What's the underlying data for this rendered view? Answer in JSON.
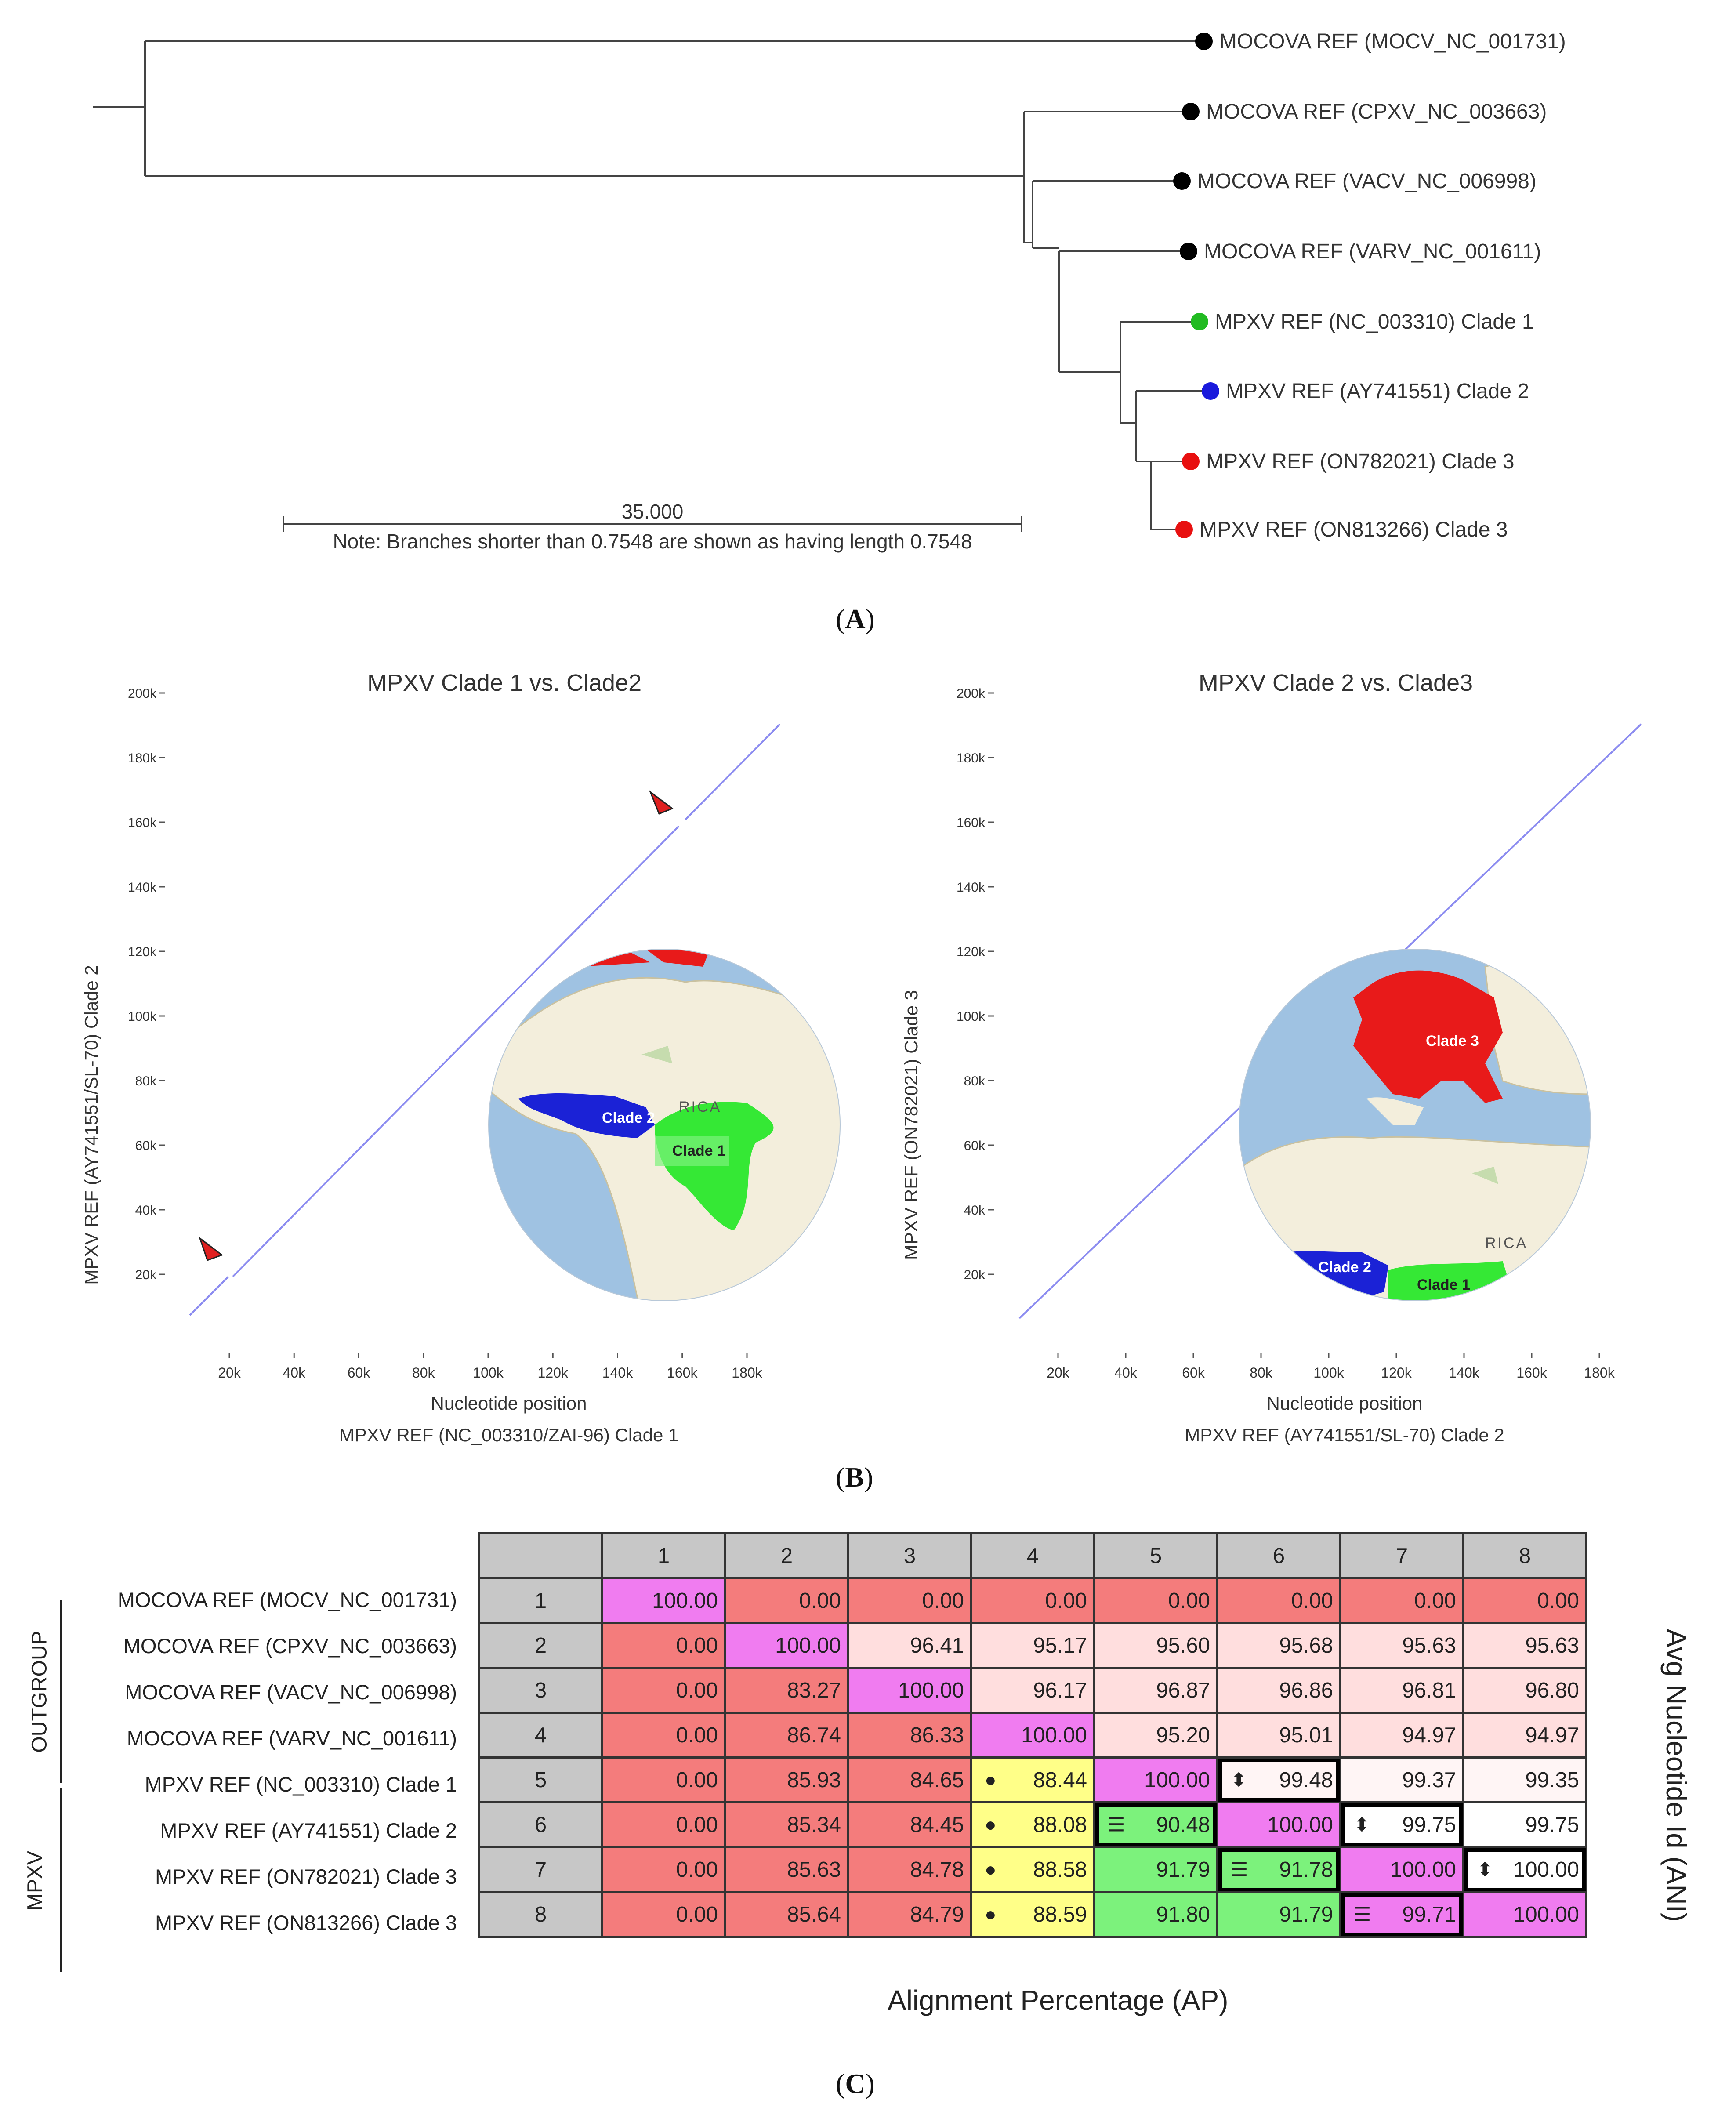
{
  "tree": {
    "leaves": [
      {
        "label": "MOCOVA REF (MOCV_NC_001731)",
        "color": "#000000"
      },
      {
        "label": "MOCOVA REF (CPXV_NC_003663)",
        "color": "#000000"
      },
      {
        "label": "MOCOVA REF (VACV_NC_006998)",
        "color": "#000000"
      },
      {
        "label": "MOCOVA REF (VARV_NC_001611)",
        "color": "#000000"
      },
      {
        "label": "MPXV REF (NC_003310) Clade 1",
        "color": "#22bb22"
      },
      {
        "label": "MPXV REF (AY741551) Clade 2",
        "color": "#1a1adc"
      },
      {
        "label": "MPXV REF (ON782021) Clade 3",
        "color": "#e81010"
      },
      {
        "label": "MPXV REF (ON813266) Clade 3",
        "color": "#e81010"
      }
    ],
    "scale_value": "35.000",
    "note": "Note: Branches shorter than 0.7548 are shown as having length 0.7548"
  },
  "labels": {
    "a": "A",
    "b": "B",
    "c": "C"
  },
  "dotplots": [
    {
      "title": "MPXV Clade 1 vs. Clade2",
      "ylabel": "MPXV REF (AY741551/SL-70) Clade 2",
      "xlabel": "Nucleotide position",
      "xlabel2": "MPXV REF (NC_003310/ZAI-96) Clade 1",
      "xticks": [
        "20k",
        "40k",
        "60k",
        "80k",
        "100k",
        "120k",
        "140k",
        "160k",
        "180k"
      ],
      "yticks": [
        "200k",
        "180k",
        "160k",
        "140k",
        "120k",
        "100k",
        "80k",
        "60k",
        "40k",
        "20k"
      ],
      "map_labels": [
        "Clade 2",
        "Clade 1",
        "RICA"
      ]
    },
    {
      "title": "MPXV Clade 2 vs. Clade3",
      "ylabel": "MPXV REF (ON782021) Clade 3",
      "xlabel": "Nucleotide position",
      "xlabel2": "MPXV REF (AY741551/SL-70) Clade 2",
      "xticks": [
        "20k",
        "40k",
        "60k",
        "80k",
        "100k",
        "120k",
        "140k",
        "160k",
        "180k"
      ],
      "yticks": [
        "200k",
        "180k",
        "160k",
        "140k",
        "120k",
        "100k",
        "80k",
        "60k",
        "40k",
        "20k"
      ],
      "map_labels": [
        "Clade 3",
        "Clade 2",
        "Clade 1",
        "RICA"
      ]
    }
  ],
  "chart_data": {
    "type": "heatmap",
    "title": "",
    "row_labels": [
      "MOCOVA REF (MOCV_NC_001731)",
      "MOCOVA REF (CPXV_NC_003663)",
      "MOCOVA REF (VACV_NC_006998)",
      "MOCOVA REF (VARV_NC_001611)",
      "MPXV REF (NC_003310) Clade 1",
      "MPXV REF (AY741551) Clade 2",
      "MPXV REF (ON782021) Clade 3",
      "MPXV REF (ON813266) Clade 3"
    ],
    "row_index": [
      "1",
      "2",
      "3",
      "4",
      "5",
      "6",
      "7",
      "8"
    ],
    "col_labels": [
      "1",
      "2",
      "3",
      "4",
      "5",
      "6",
      "7",
      "8"
    ],
    "values": [
      [
        "100.00",
        "0.00",
        "0.00",
        "0.00",
        "0.00",
        "0.00",
        "0.00",
        "0.00"
      ],
      [
        "0.00",
        "100.00",
        "96.41",
        "95.17",
        "95.60",
        "95.68",
        "95.63",
        "95.63"
      ],
      [
        "0.00",
        "83.27",
        "100.00",
        "96.17",
        "96.87",
        "96.86",
        "96.81",
        "96.80"
      ],
      [
        "0.00",
        "86.74",
        "86.33",
        "100.00",
        "95.20",
        "95.01",
        "94.97",
        "94.97"
      ],
      [
        "0.00",
        "85.93",
        "84.65",
        "88.44",
        "100.00",
        "99.48",
        "99.37",
        "99.35"
      ],
      [
        "0.00",
        "85.34",
        "84.45",
        "88.08",
        "90.48",
        "100.00",
        "99.75",
        "99.75"
      ],
      [
        "0.00",
        "85.63",
        "84.78",
        "88.58",
        "91.79",
        "91.78",
        "100.00",
        "100.00"
      ],
      [
        "0.00",
        "85.64",
        "84.79",
        "88.59",
        "91.80",
        "91.79",
        "99.71",
        "100.00"
      ]
    ],
    "colors": {
      "red": "#f47c7c",
      "pink": "#ffdede",
      "light": "#fff5f5",
      "magenta": "#f07cf0",
      "yellow": "#ffff88",
      "green": "#7cf27c",
      "white": "#ffffff",
      "header": "#c7c7c7"
    },
    "group_labels": [
      "OUTGROUP",
      "MPXV"
    ],
    "xlabel": "Alignment Percentage (AP)",
    "ylabel_right": "Avg Nucleotide Id (ANI)"
  }
}
